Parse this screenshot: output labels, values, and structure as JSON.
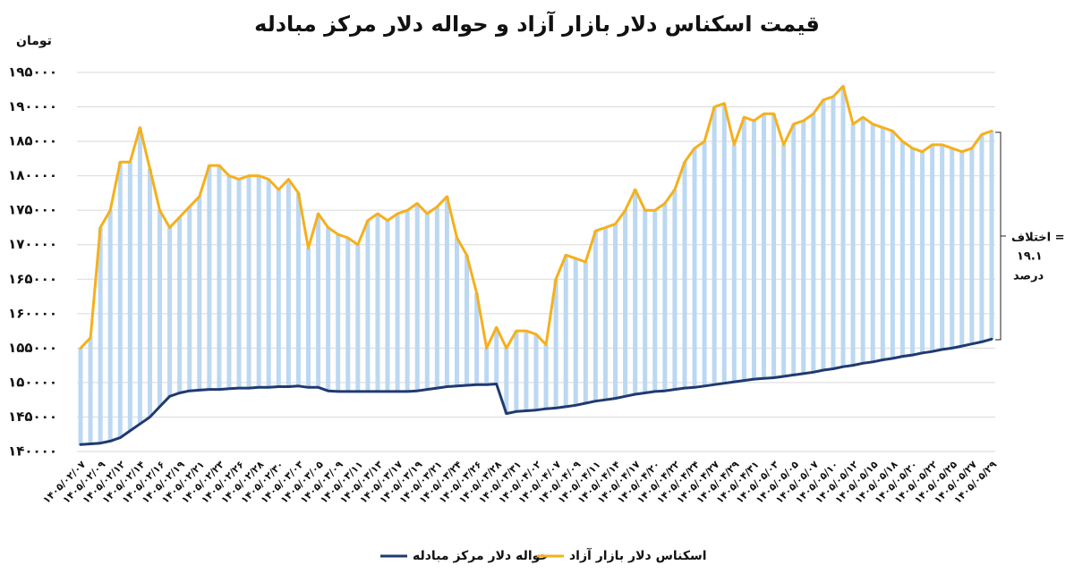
{
  "chart_data": {
    "type": "line",
    "title": "قیمت اسکناس دلار بازار آزاد و حواله دلار مرکز مبادله",
    "y_axis_label": "تومان",
    "annotation": [
      "اختلاف =",
      "۱۹.۱",
      "درصد"
    ],
    "categories": [
      "۱۴۰۵/۰۲/۰۷",
      null,
      "۱۴۰۵/۰۲/۰۹",
      null,
      "۱۴۰۵/۰۲/۱۲",
      null,
      "۱۴۰۵/۰۲/۱۴",
      null,
      "۱۴۰۵/۰۲/۱۶",
      null,
      "۱۴۰۵/۰۲/۱۹",
      null,
      "۱۴۰۵/۰۲/۲۱",
      null,
      "۱۴۰۵/۰۲/۲۳",
      null,
      "۱۴۰۵/۰۲/۲۶",
      null,
      "۱۴۰۵/۰۲/۲۸",
      null,
      "۱۴۰۵/۰۲/۳۰",
      null,
      "۱۴۰۵/۰۳/۰۳",
      null,
      "۱۴۰۵/۰۳/۰۵",
      null,
      "۱۴۰۵/۰۳/۰۹",
      null,
      "۱۴۰۵/۰۳/۱۱",
      null,
      "۱۴۰۵/۰۳/۱۳",
      null,
      "۱۴۰۵/۰۳/۱۷",
      null,
      "۱۴۰۵/۰۳/۱۹",
      null,
      "۱۴۰۵/۰۳/۲۱",
      null,
      "۱۴۰۵/۰۳/۲۴",
      null,
      "۱۴۰۵/۰۳/۲۶",
      null,
      "۱۴۰۵/۰۳/۲۸",
      null,
      "۱۴۰۵/۰۳/۳۱",
      null,
      "۱۴۰۵/۰۴/۰۲",
      null,
      "۱۴۰۵/۰۴/۰۷",
      null,
      "۱۴۰۵/۰۴/۰۹",
      null,
      "۱۴۰۵/۰۴/۱۱",
      null,
      "۱۴۰۵/۰۴/۱۴",
      null,
      "۱۴۰۵/۰۴/۱۷",
      null,
      "۱۴۰۵/۰۴/۲۰",
      null,
      "۱۴۰۵/۰۴/۲۲",
      null,
      "۱۴۰۵/۰۴/۲۴",
      null,
      "۱۴۰۵/۰۴/۲۷",
      null,
      "۱۴۰۵/۰۴/۲۹",
      null,
      "۱۴۰۵/۰۴/۳۱",
      null,
      "۱۴۰۵/۰۵/۰۳",
      null,
      "۱۴۰۵/۰۵/۰۵",
      null,
      "۱۴۰۵/۰۵/۰۷",
      null,
      "۱۴۰۵/۰۵/۱۰",
      null,
      "۱۴۰۵/۰۵/۱۲",
      null,
      "۱۴۰۵/۰۵/۱۵",
      null,
      "۱۴۰۵/۰۵/۱۸",
      null,
      "۱۴۰۵/۰۵/۲۰",
      null,
      "۱۴۰۵/۰۵/۲۲",
      null,
      "۱۴۰۵/۰۵/۲۵",
      null,
      "۱۴۰۵/۰۵/۲۷",
      null,
      "۱۴۰۵/۰۵/۲۹"
    ],
    "series": [
      {
        "name": "حواله دلار مرکز مبادله",
        "color": "#1f3a70",
        "values": [
          141000,
          141100,
          141200,
          141500,
          142000,
          143000,
          144000,
          145000,
          146500,
          148000,
          148500,
          148800,
          148900,
          149000,
          149000,
          149100,
          149200,
          149200,
          149300,
          149300,
          149400,
          149400,
          149500,
          149300,
          149300,
          148800,
          148700,
          148700,
          148700,
          148700,
          148700,
          148700,
          148700,
          148700,
          148800,
          149000,
          149200,
          149400,
          149500,
          149600,
          149700,
          149700,
          149800,
          145500,
          145800,
          145900,
          146000,
          146200,
          146300,
          146500,
          146700,
          147000,
          147300,
          147500,
          147700,
          148000,
          148300,
          148500,
          148700,
          148800,
          149000,
          149200,
          149300,
          149500,
          149700,
          149900,
          150100,
          150300,
          150500,
          150600,
          150700,
          150900,
          151100,
          151300,
          151500,
          151800,
          152000,
          152300,
          152500,
          152800,
          153000,
          153300,
          153500,
          153800,
          154000,
          154300,
          154500,
          154800,
          155000,
          155300,
          155600,
          155900,
          156300
        ]
      },
      {
        "name": "اسکناس دلار بازار آزاد",
        "color": "#f5b01b",
        "values": [
          155000,
          156500,
          172500,
          175000,
          182000,
          182000,
          187000,
          181000,
          175000,
          172500,
          174000,
          175500,
          177000,
          181500,
          181500,
          180000,
          179500,
          180000,
          180000,
          179500,
          178000,
          179500,
          177500,
          169500,
          174500,
          172500,
          171500,
          171000,
          170000,
          173500,
          174500,
          173500,
          174500,
          175000,
          176000,
          174500,
          175500,
          177000,
          171000,
          168500,
          163000,
          155000,
          158000,
          155000,
          157500,
          157500,
          157000,
          155500,
          165000,
          168500,
          168000,
          167500,
          172000,
          172500,
          173000,
          175000,
          178000,
          175000,
          175000,
          176000,
          178000,
          182000,
          184000,
          185000,
          190000,
          190500,
          184500,
          188500,
          188000,
          189000,
          189000,
          184500,
          187500,
          188000,
          189000,
          191000,
          191500,
          193000,
          187500,
          188500,
          187500,
          187000,
          186500,
          185000,
          184000,
          183500,
          184500,
          184500,
          184000,
          183500,
          184000,
          186000,
          186500
        ]
      }
    ],
    "ylim": [
      140000,
      195000
    ],
    "yticks": [
      {
        "value": 140000,
        "label": "۱۴۰۰۰۰"
      },
      {
        "value": 145000,
        "label": "۱۴۵۰۰۰"
      },
      {
        "value": 150000,
        "label": "۱۵۰۰۰۰"
      },
      {
        "value": 155000,
        "label": "۱۵۵۰۰۰"
      },
      {
        "value": 160000,
        "label": "۱۶۰۰۰۰"
      },
      {
        "value": 165000,
        "label": "۱۶۵۰۰۰"
      },
      {
        "value": 170000,
        "label": "۱۷۰۰۰۰"
      },
      {
        "value": 175000,
        "label": "۱۷۵۰۰۰"
      },
      {
        "value": 180000,
        "label": "۱۸۰۰۰۰"
      },
      {
        "value": 185000,
        "label": "۱۸۵۰۰۰"
      },
      {
        "value": 190000,
        "label": "۱۹۰۰۰۰"
      },
      {
        "value": 195000,
        "label": "۱۹۵۰۰۰"
      }
    ],
    "grid": true
  }
}
